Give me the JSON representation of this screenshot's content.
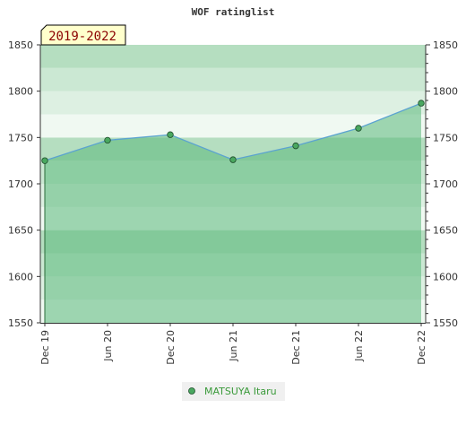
{
  "chart_data": {
    "type": "area",
    "title": "WOF ratinglist",
    "period_label": "2019-2022",
    "x_tick_labels": [
      "Dec 19",
      "Jun 20",
      "Dec 20",
      "Jun 21",
      "Dec 21",
      "Jun 22",
      "Dec 22"
    ],
    "ylim": [
      1550,
      1850
    ],
    "y_ticks": [
      1550,
      1600,
      1650,
      1700,
      1750,
      1800,
      1850
    ],
    "series": [
      {
        "name": "MATSUYA Itaru",
        "x": [
          "Dec 19",
          "Jun 20",
          "Dec 20",
          "Jun 21",
          "Dec 21",
          "Jun 22",
          "Dec 22"
        ],
        "values": [
          1725,
          1747,
          1753,
          1726,
          1741,
          1760,
          1787
        ]
      }
    ],
    "legend_position": "bottom-center",
    "colors": {
      "line": "#5ba3d0",
      "marker": "#4aa860",
      "fill": "#5ab87a"
    }
  }
}
